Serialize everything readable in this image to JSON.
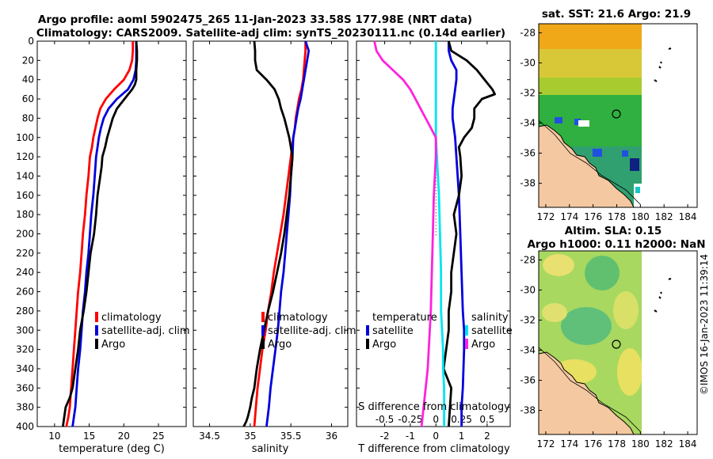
{
  "header": {
    "title_line1": "Argo profile: aoml 5902475_265 11-Jan-2023 33.58S 177.98E (NRT data)",
    "title_line2": "Climatology: CARS2009. Satellite-adj clim: synTS_20230111.nc (0.14d earlier)"
  },
  "sst_map": {
    "title": "sat. SST: 21.6 Argo: 21.9"
  },
  "sla_map": {
    "title_line1": "Altim. SLA: 0.15",
    "title_line2": "Argo h1000: 0.11 h2000: NaN"
  },
  "map_axes": {
    "lat_ticks": [
      "-28",
      "-30",
      "-32",
      "-34",
      "-36",
      "-38"
    ],
    "lon_ticks": [
      "172",
      "174",
      "176",
      "178",
      "180",
      "182",
      "184"
    ]
  },
  "watermark": "©IMOS 16-Jan-2023 11:39:14",
  "colors": {
    "climatology": "#ff0000",
    "satellite": "#0000dd",
    "argo": "#000000",
    "s_diff": "#ff22dd",
    "s_sat": "#00e5ee"
  },
  "chart_data": [
    {
      "type": "line",
      "title": "",
      "xlabel": "temperature (deg C)",
      "ylabel": "",
      "xlim": [
        7.5,
        29
      ],
      "ylim": [
        400,
        0
      ],
      "x_ticks": [
        "10",
        "15",
        "20",
        "25"
      ],
      "y_ticks": [
        "0",
        "20",
        "40",
        "60",
        "80",
        "100",
        "120",
        "140",
        "160",
        "180",
        "200",
        "220",
        "240",
        "260",
        "280",
        "300",
        "320",
        "340",
        "360",
        "380",
        "400"
      ],
      "legend": [
        "climatology",
        "satellite-adj. clim",
        "Argo"
      ],
      "series": [
        {
          "name": "climatology",
          "x": [
            21.3,
            21.3,
            21.2,
            20.8,
            20,
            18.6,
            17.4,
            16.6,
            16.2,
            15.9,
            15.6,
            15.4,
            15.1,
            14.9,
            14.6,
            14.4,
            14.1,
            13.9,
            13.7,
            13.4,
            13.2,
            13,
            12.8,
            12.6,
            12.4,
            12.2,
            12,
            11.7
          ],
          "y": [
            0,
            10,
            20,
            30,
            40,
            50,
            60,
            70,
            80,
            90,
            100,
            110,
            120,
            140,
            160,
            180,
            200,
            220,
            240,
            260,
            280,
            300,
            320,
            340,
            360,
            380,
            390,
            400
          ]
        },
        {
          "name": "satellite-adj. clim",
          "x": [
            21.8,
            21.8,
            21.8,
            21.7,
            21.4,
            20.6,
            19,
            17.8,
            17.1,
            16.7,
            16.4,
            16.2,
            16,
            15.8,
            15.6,
            15.3,
            15.1,
            14.9,
            14.6,
            14.4,
            14.1,
            13.9,
            13.7,
            13.4,
            13.2,
            13,
            12.8,
            12.6
          ],
          "y": [
            0,
            10,
            20,
            30,
            40,
            50,
            60,
            70,
            80,
            90,
            100,
            110,
            120,
            140,
            160,
            180,
            200,
            220,
            240,
            260,
            280,
            300,
            320,
            340,
            360,
            380,
            390,
            400
          ]
        },
        {
          "name": "Argo",
          "x": [
            21.8,
            21.9,
            21.9,
            21.8,
            21.8,
            21.6,
            21.2,
            20.1,
            19,
            18.4,
            18,
            17.6,
            17.3,
            16.9,
            16.8,
            16.6,
            16.2,
            16,
            15.7,
            15.2,
            14.9,
            14.6,
            14.2,
            13.7,
            13.4,
            13,
            12.6,
            12.2,
            11.6,
            11.4,
            11.2
          ],
          "y": [
            0,
            10,
            20,
            30,
            40,
            45,
            50,
            60,
            70,
            80,
            90,
            100,
            110,
            120,
            130,
            140,
            160,
            180,
            200,
            220,
            240,
            260,
            280,
            300,
            320,
            340,
            360,
            370,
            380,
            390,
            400
          ]
        }
      ]
    },
    {
      "type": "line",
      "title": "",
      "xlabel": "salinity",
      "ylabel": "",
      "xlim": [
        34.3,
        36.2
      ],
      "ylim": [
        400,
        0
      ],
      "x_ticks": [
        "34.5",
        "35",
        "35.5",
        "36"
      ],
      "y_ticks": [],
      "legend": [
        "climatology",
        "satellite-adj. clim",
        "Argo"
      ],
      "series": [
        {
          "name": "climatology",
          "x": [
            35.68,
            35.68,
            35.67,
            35.66,
            35.65,
            35.63,
            35.6,
            35.58,
            35.56,
            35.55,
            35.53,
            35.5,
            35.47,
            35.44,
            35.41,
            35.37,
            35.33,
            35.29,
            35.26,
            35.22,
            35.19,
            35.15,
            35.12,
            35.09,
            35.07,
            35.05
          ],
          "y": [
            0,
            10,
            20,
            30,
            40,
            50,
            60,
            70,
            80,
            90,
            100,
            120,
            140,
            160,
            180,
            200,
            220,
            240,
            260,
            280,
            300,
            320,
            340,
            360,
            380,
            400
          ]
        },
        {
          "name": "satellite-adj. clim",
          "x": [
            35.68,
            35.72,
            35.7,
            35.68,
            35.66,
            35.64,
            35.62,
            35.59,
            35.57,
            35.55,
            35.53,
            35.52,
            35.5,
            35.49,
            35.47,
            35.45,
            35.43,
            35.41,
            35.38,
            35.36,
            35.34,
            35.31,
            35.28,
            35.25,
            35.23,
            35.2
          ],
          "y": [
            0,
            10,
            20,
            30,
            40,
            50,
            60,
            70,
            80,
            90,
            100,
            120,
            140,
            160,
            180,
            200,
            220,
            240,
            260,
            280,
            300,
            320,
            340,
            360,
            380,
            400
          ]
        },
        {
          "name": "Argo",
          "x": [
            35.05,
            35.06,
            35.06,
            35.08,
            35.2,
            35.3,
            35.35,
            35.38,
            35.42,
            35.45,
            35.48,
            35.52,
            35.5,
            35.48,
            35.45,
            35.42,
            35.38,
            35.33,
            35.28,
            35.22,
            35.17,
            35.12,
            35.08,
            35.05,
            35.02,
            35,
            34.97,
            34.95,
            34.92
          ],
          "y": [
            0,
            10,
            20,
            30,
            40,
            50,
            60,
            70,
            80,
            90,
            100,
            120,
            140,
            160,
            180,
            200,
            220,
            240,
            260,
            280,
            300,
            320,
            340,
            360,
            370,
            380,
            390,
            395,
            400
          ]
        }
      ]
    },
    {
      "type": "line",
      "title": "",
      "xlabel": "T difference from climatology",
      "ylabel": "",
      "xlim": [
        -3.1,
        2.9
      ],
      "ylim": [
        400,
        0
      ],
      "x_ticks": [
        "-2",
        "-1",
        "0",
        "1",
        "2"
      ],
      "y_ticks": [],
      "secondary_xlabel": "S difference from climatology",
      "secondary_x_ticks": [
        "-0.5",
        "-0.25",
        "0",
        "0.25",
        "0.5"
      ],
      "secondary_xlim": [
        -0.775,
        0.725
      ],
      "legend": [
        "temperature",
        "satellite",
        "Argo",
        "salinity",
        "satellite",
        "Argo"
      ],
      "series": [
        {
          "name": "T satellite",
          "x": [
            0.5,
            0.5,
            0.6,
            0.8,
            0.8,
            0.75,
            0.7,
            0.65,
            0.65,
            0.7,
            0.75,
            0.8,
            0.85,
            0.9,
            0.95,
            1,
            1.05,
            1.1,
            1.1,
            1.05,
            1,
            1
          ],
          "y": [
            0,
            10,
            20,
            30,
            40,
            50,
            60,
            70,
            80,
            90,
            100,
            120,
            140,
            160,
            200,
            240,
            280,
            300,
            320,
            360,
            380,
            400
          ]
        },
        {
          "name": "T Argo",
          "x": [
            0.5,
            0.6,
            1.2,
            1.6,
            1.9,
            2.2,
            2.3,
            1.8,
            1.5,
            1.5,
            1.4,
            1.1,
            0.9,
            0.95,
            1,
            0.9,
            0.7,
            0.8,
            0.6,
            0.6,
            0.5,
            0.5,
            0.4,
            0.3,
            0.6,
            0.5
          ],
          "y": [
            0,
            10,
            20,
            30,
            40,
            50,
            55,
            60,
            70,
            80,
            90,
            100,
            110,
            120,
            140,
            160,
            180,
            200,
            240,
            260,
            280,
            300,
            320,
            340,
            360,
            400
          ]
        },
        {
          "name": "S satellite",
          "x": [
            0,
            0,
            0,
            0,
            0,
            0,
            0,
            0,
            0.01,
            0.02,
            0.03,
            0.04,
            0.05,
            0.05,
            0.06,
            0.07,
            0.07,
            0.08,
            0.08,
            0.08
          ],
          "y": [
            0,
            10,
            20,
            30,
            40,
            60,
            80,
            100,
            120,
            140,
            160,
            200,
            240,
            280,
            300,
            320,
            340,
            360,
            380,
            400
          ]
        },
        {
          "name": "S Argo",
          "x": [
            -0.6,
            -0.58,
            -0.52,
            -0.42,
            -0.32,
            -0.25,
            -0.2,
            -0.15,
            -0.1,
            -0.05,
            0,
            0,
            -0.01,
            -0.02,
            -0.03,
            -0.04,
            -0.05,
            -0.06,
            -0.07,
            -0.08,
            -0.1,
            -0.12,
            -0.14
          ],
          "y": [
            0,
            10,
            20,
            30,
            40,
            50,
            60,
            70,
            80,
            90,
            100,
            120,
            140,
            160,
            200,
            240,
            280,
            300,
            320,
            340,
            360,
            380,
            400
          ]
        }
      ]
    }
  ]
}
